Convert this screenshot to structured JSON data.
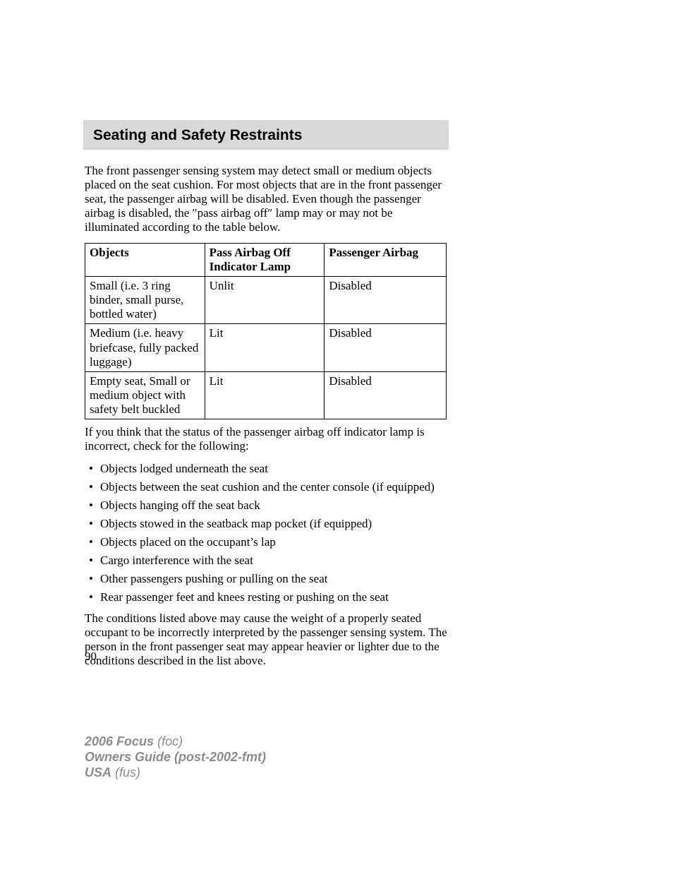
{
  "header": {
    "title": "Seating and Safety Restraints"
  },
  "intro": "The front passenger sensing system may detect small or medium objects placed on the seat cushion. For most objects that are in the front passenger seat, the passenger airbag will be disabled. Even though the passenger airbag is disabled, the ″pass airbag off″ lamp may or may not be illuminated according to the table below.",
  "table": {
    "columns": [
      "Objects",
      "Pass Airbag Off Indicator Lamp",
      "Passenger Airbag"
    ],
    "rows": [
      [
        "Small (i.e. 3 ring binder, small purse, bottled water)",
        "Unlit",
        "Disabled"
      ],
      [
        "Medium (i.e. heavy briefcase, fully packed luggage)",
        "Lit",
        "Disabled"
      ],
      [
        "Empty seat, Small or medium object with safety belt buckled",
        "Lit",
        "Disabled"
      ]
    ]
  },
  "after_table": "If you think that the status of the passenger airbag off indicator lamp is incorrect, check for the following:",
  "bullets": [
    "Objects lodged underneath the seat",
    "Objects between the seat cushion and the center console (if equipped)",
    "Objects hanging off the seat back",
    "Objects stowed in the seatback map pocket (if equipped)",
    "Objects placed on the occupant’s lap",
    "Cargo interference with the seat",
    "Other passengers pushing or pulling on the seat",
    "Rear passenger feet and knees resting or pushing on the seat"
  ],
  "closing": "The conditions listed above may cause the weight of a properly seated occupant to be incorrectly interpreted by the passenger sensing system. The person in the front passenger seat may appear heavier or lighter due to the conditions described in the list above.",
  "page_number": "90",
  "footer": {
    "line1_bold": "2006 Focus",
    "line1_ital": "(foc)",
    "line2_bold": "Owners Guide (post-2002-fmt)",
    "line3_bold": "USA",
    "line3_ital": "(fus)"
  }
}
